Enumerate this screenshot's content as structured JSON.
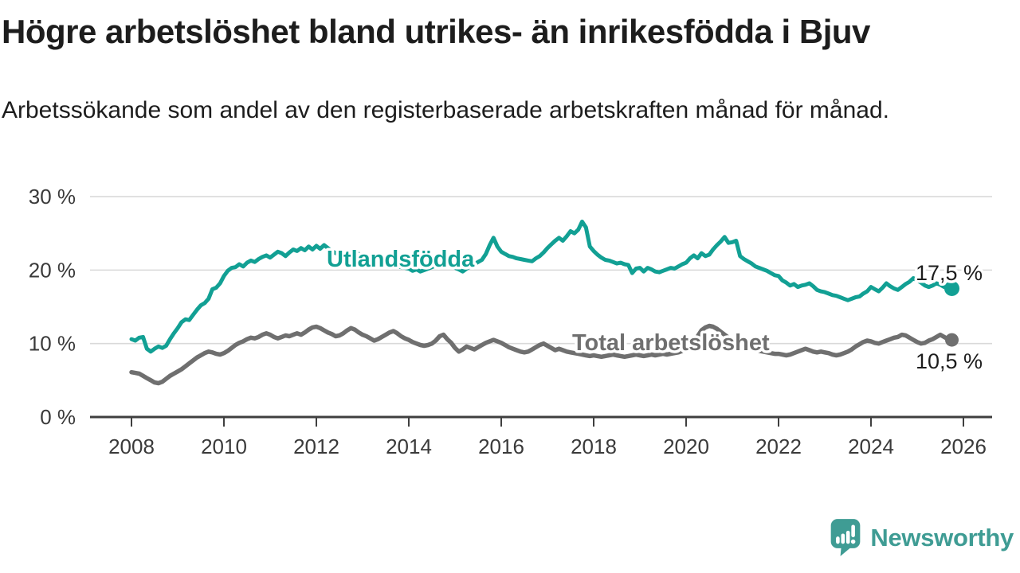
{
  "title": "Högre arbetslöshet bland utrikes- än inrikesfödda i Bjuv",
  "subtitle": "Arbetssökande som andel av den registerbaserade arbetskraften månad för månad.",
  "branding": {
    "logo_text": "Newsworthy",
    "logo_icon": "speech-bubble-bar-chart-icon",
    "color": "#3f9c94"
  },
  "chart_data": {
    "type": "line",
    "title": "",
    "xlabel": "",
    "ylabel": "",
    "grid": "horizontal-gridlines",
    "legend_position": "inline-labels-on-lines",
    "x_start_year": 2008,
    "x_step_months": 1,
    "x_end_label_approx": "2025",
    "ylim": [
      0,
      31
    ],
    "y_ticks": [
      {
        "label": "30 %",
        "value": 30
      },
      {
        "label": "20 %",
        "value": 20
      },
      {
        "label": "10 %",
        "value": 10
      },
      {
        "label": "0 %",
        "value": 0
      }
    ],
    "x_ticks": [
      {
        "label": "2008",
        "year": 2008
      },
      {
        "label": "2010",
        "year": 2010
      },
      {
        "label": "2012",
        "year": 2012
      },
      {
        "label": "2014",
        "year": 2014
      },
      {
        "label": "2016",
        "year": 2016
      },
      {
        "label": "2018",
        "year": 2018
      },
      {
        "label": "2020",
        "year": 2020
      },
      {
        "label": "2022",
        "year": 2022
      },
      {
        "label": "2024",
        "year": 2024
      },
      {
        "label": "2026",
        "year": 2026
      }
    ],
    "series": [
      {
        "name": "Utlandsfödda",
        "color": "#12a094",
        "end_value": 17.5,
        "end_label": "17,5 %",
        "values": [
          10.6,
          10.4,
          10.8,
          10.9,
          9.3,
          8.9,
          9.3,
          9.6,
          9.4,
          9.7,
          10.6,
          11.4,
          12.1,
          12.9,
          13.3,
          13.2,
          13.9,
          14.6,
          15.2,
          15.5,
          16.1,
          17.4,
          17.6,
          18.2,
          19.2,
          19.9,
          20.3,
          20.4,
          20.8,
          20.5,
          21.0,
          21.3,
          21.1,
          21.5,
          21.8,
          22.0,
          21.7,
          22.1,
          22.5,
          22.3,
          21.9,
          22.4,
          22.8,
          22.6,
          23.0,
          22.7,
          23.2,
          22.8,
          23.3,
          22.9,
          23.4,
          23.0,
          22.6,
          22.3,
          22.6,
          22.2,
          22.0,
          22.3,
          21.9,
          22.2,
          21.8,
          21.6,
          21.5,
          21.3,
          21.2,
          21.1,
          21.0,
          20.8,
          20.7,
          20.5,
          20.4,
          20.3,
          20.2,
          19.9,
          20.1,
          19.8,
          20.0,
          20.2,
          20.4,
          20.6,
          20.8,
          21.0,
          20.8,
          20.6,
          20.3,
          20.1,
          19.8,
          20.2,
          20.5,
          20.8,
          21.1,
          21.4,
          22.2,
          23.4,
          24.4,
          23.2,
          22.5,
          22.2,
          21.9,
          21.8,
          21.6,
          21.5,
          21.4,
          21.3,
          21.2,
          21.6,
          21.9,
          22.4,
          23.0,
          23.5,
          24.0,
          24.4,
          24.0,
          24.6,
          25.3,
          25.0,
          25.5,
          26.6,
          25.8,
          23.2,
          22.6,
          22.1,
          21.7,
          21.4,
          21.3,
          21.1,
          20.9,
          21.0,
          20.8,
          20.7,
          19.6,
          20.2,
          20.3,
          19.8,
          20.3,
          20.1,
          19.8,
          19.7,
          19.9,
          20.1,
          20.3,
          20.2,
          20.5,
          20.8,
          21.0,
          21.6,
          22.0,
          21.6,
          22.3,
          21.9,
          22.1,
          22.8,
          23.4,
          23.9,
          24.5,
          23.7,
          23.8,
          24.0,
          21.9,
          21.5,
          21.2,
          20.9,
          20.5,
          20.3,
          20.1,
          19.9,
          19.6,
          19.3,
          19.2,
          18.6,
          18.3,
          17.9,
          18.1,
          17.7,
          17.9,
          18.0,
          18.2,
          17.8,
          17.3,
          17.1,
          17.0,
          16.8,
          16.6,
          16.5,
          16.3,
          16.1,
          15.9,
          16.1,
          16.3,
          16.4,
          16.8,
          17.1,
          17.7,
          17.4,
          17.1,
          17.6,
          18.2,
          17.8,
          17.5,
          17.3,
          17.7,
          18.1,
          18.4,
          18.9,
          18.6,
          18.3,
          17.9,
          17.7,
          17.9,
          18.2,
          18.0,
          17.7,
          17.5,
          17.5
        ]
      },
      {
        "name": "Total arbetslöshet",
        "color": "#6f6f6f",
        "end_value": 10.5,
        "end_label": "10,5 %",
        "values": [
          6.1,
          6.0,
          5.9,
          5.6,
          5.3,
          5.0,
          4.7,
          4.6,
          4.8,
          5.2,
          5.6,
          5.9,
          6.2,
          6.5,
          6.9,
          7.3,
          7.7,
          8.1,
          8.4,
          8.7,
          8.9,
          8.8,
          8.6,
          8.5,
          8.7,
          9.0,
          9.4,
          9.8,
          10.1,
          10.3,
          10.6,
          10.8,
          10.7,
          10.9,
          11.2,
          11.4,
          11.2,
          10.9,
          10.7,
          10.9,
          11.1,
          11.0,
          11.2,
          11.4,
          11.2,
          11.5,
          11.9,
          12.2,
          12.3,
          12.1,
          11.8,
          11.5,
          11.3,
          11.0,
          11.1,
          11.4,
          11.8,
          12.1,
          11.9,
          11.5,
          11.2,
          11.0,
          10.7,
          10.4,
          10.6,
          10.9,
          11.2,
          11.5,
          11.7,
          11.4,
          11.0,
          10.7,
          10.5,
          10.2,
          10.0,
          9.8,
          9.7,
          9.8,
          10.0,
          10.4,
          11.0,
          11.2,
          10.6,
          10.1,
          9.4,
          8.9,
          9.2,
          9.6,
          9.4,
          9.2,
          9.5,
          9.8,
          10.1,
          10.3,
          10.5,
          10.3,
          10.1,
          9.8,
          9.5,
          9.3,
          9.1,
          8.9,
          8.8,
          8.9,
          9.2,
          9.5,
          9.8,
          10.0,
          9.7,
          9.4,
          9.1,
          9.3,
          9.1,
          8.9,
          8.8,
          8.7,
          8.6,
          8.5,
          8.4,
          8.3,
          8.4,
          8.3,
          8.2,
          8.3,
          8.4,
          8.5,
          8.4,
          8.3,
          8.2,
          8.3,
          8.4,
          8.5,
          8.4,
          8.3,
          8.4,
          8.5,
          8.4,
          8.5,
          8.6,
          8.5,
          8.6,
          8.7,
          8.8,
          9.0,
          9.2,
          9.4,
          9.8,
          11.0,
          11.8,
          12.2,
          12.4,
          12.3,
          12.0,
          11.6,
          11.2,
          10.8,
          10.5,
          10.2,
          9.9,
          9.7,
          9.5,
          9.3,
          9.1,
          9.0,
          8.9,
          8.8,
          8.7,
          8.6,
          8.6,
          8.5,
          8.4,
          8.5,
          8.7,
          8.9,
          9.1,
          9.3,
          9.1,
          8.9,
          8.8,
          8.9,
          8.8,
          8.7,
          8.5,
          8.4,
          8.5,
          8.7,
          8.9,
          9.2,
          9.6,
          9.9,
          10.2,
          10.4,
          10.3,
          10.1,
          10.0,
          10.2,
          10.4,
          10.6,
          10.8,
          10.9,
          11.2,
          11.1,
          10.8,
          10.5,
          10.2,
          10.0,
          10.1,
          10.4,
          10.6,
          10.9,
          11.2,
          10.9,
          10.6,
          10.5
        ]
      }
    ]
  }
}
